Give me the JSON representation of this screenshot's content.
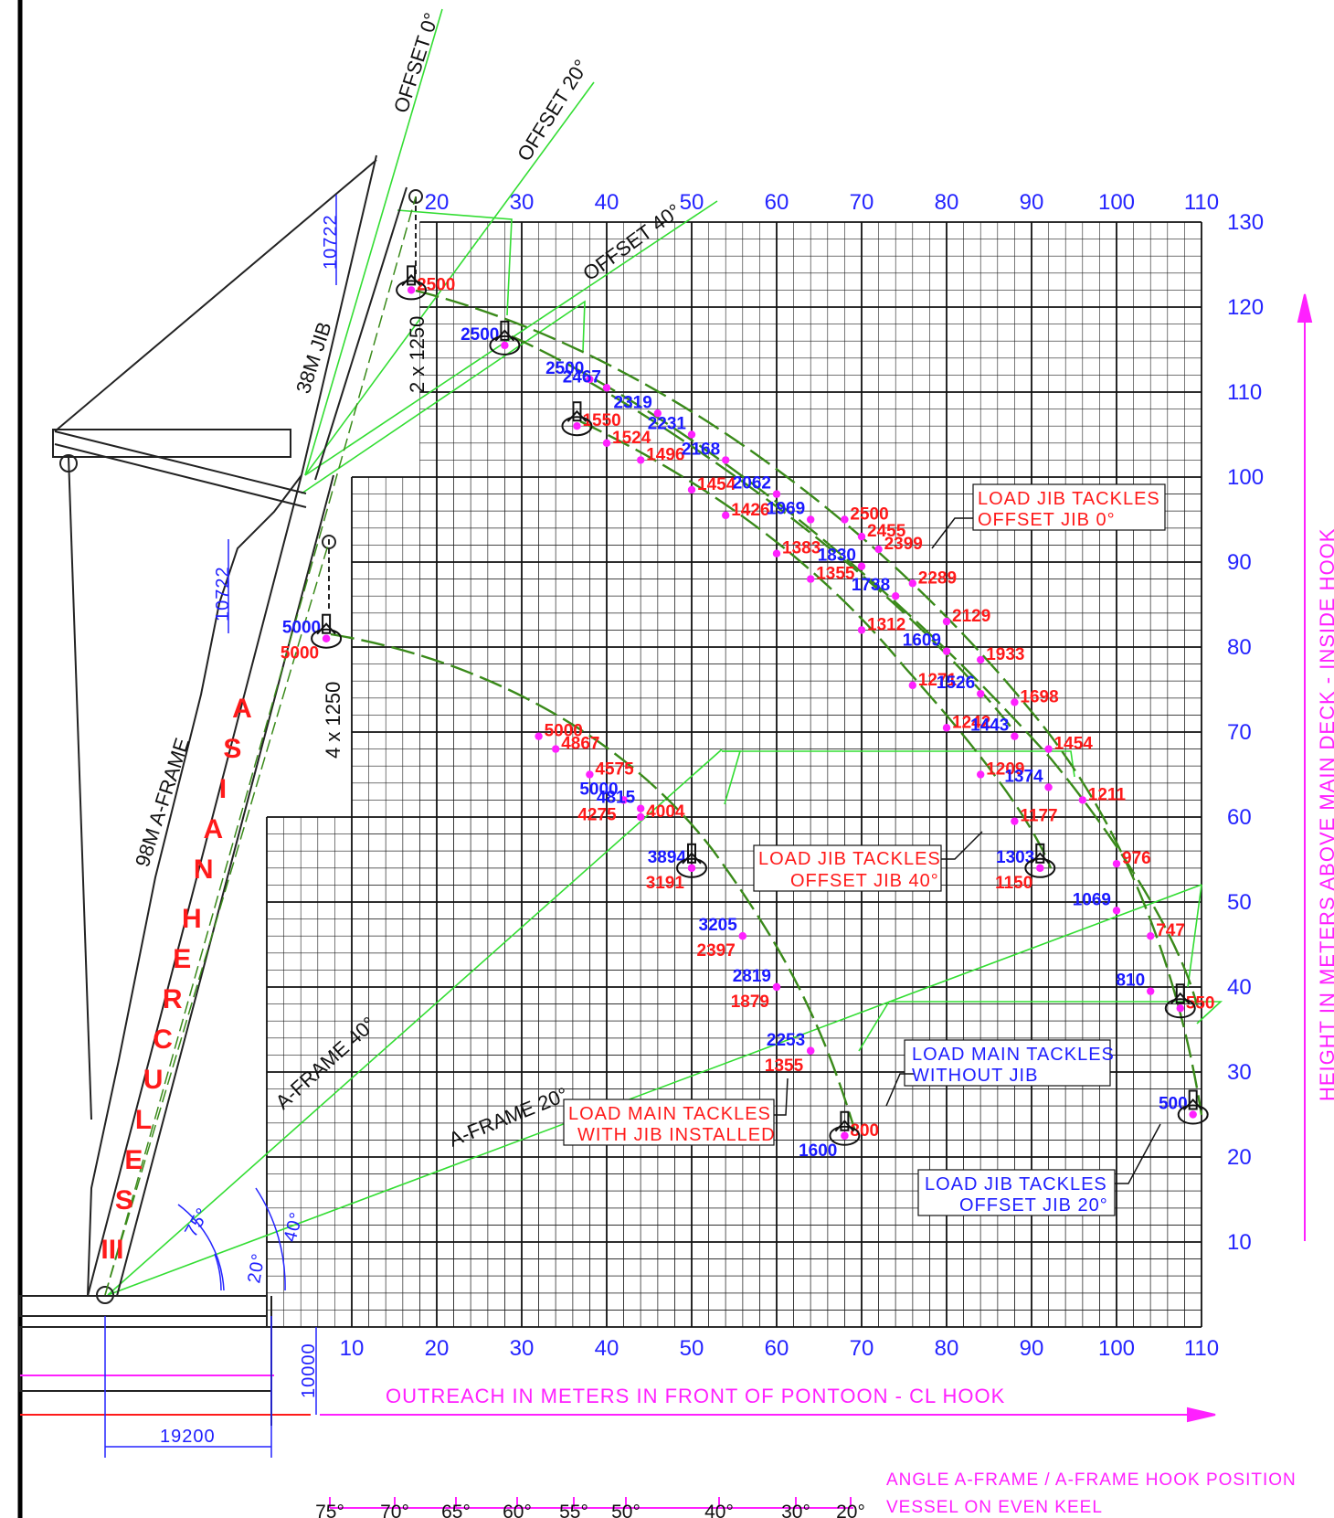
{
  "axes": {
    "x_top_ticks": [
      "20",
      "30",
      "40",
      "50",
      "60",
      "70",
      "80",
      "90",
      "100",
      "110"
    ],
    "x_bottom_ticks": [
      "10",
      "20",
      "30",
      "40",
      "50",
      "60",
      "70",
      "80",
      "90",
      "100",
      "110"
    ],
    "y_ticks": [
      "130",
      "120",
      "110",
      "100",
      "90",
      "80",
      "70",
      "60",
      "50",
      "40",
      "30",
      "20",
      "10"
    ],
    "x_title": "OUTREACH IN METERS IN FRONT OF PONTOON - CL HOOK",
    "y_title": "HEIGHT IN METERS ABOVE MAIN DECK - INSIDE HOOK"
  },
  "angle_scale": {
    "ticks": [
      "75°",
      "70°",
      "65°",
      "60°",
      "55°",
      "50°",
      "40°",
      "30°",
      "20°"
    ],
    "caption1": "ANGLE A-FRAME / A-FRAME HOOK POSITION",
    "caption2": "VESSEL ON EVEN KEEL"
  },
  "crane": {
    "name": "ASIAN HERCULES III",
    "name_letters": [
      "A",
      "S",
      "I",
      "A",
      "N",
      "H",
      "E",
      "R",
      "C",
      "U",
      "L",
      "E",
      "S",
      "III"
    ],
    "a_frame_label": "98M A-FRAME",
    "jib_label": "38M JIB",
    "dim_jib_top": "10722",
    "dim_jib_mid": "10722",
    "tackle_jib": "2 x 1250",
    "tackle_main": "4 x 1250",
    "dim_deck": "10000",
    "dim_base": "19200",
    "angle_75": "75°",
    "angle_20": "20°",
    "angle_40": "40°"
  },
  "line_labels": {
    "offset0": "OFFSET 0°",
    "offset20": "OFFSET 20°",
    "offset40": "OFFSET 40°",
    "aframe40": "A-FRAME 40°",
    "aframe20": "A-FRAME 20°"
  },
  "notes": {
    "jib0_l1": "LOAD JIB TACKLES",
    "jib0_l2": "OFFSET JIB 0°",
    "jib40_l1": "LOAD JIB TACKLES",
    "jib40_l2": "OFFSET JIB 40°",
    "main_wo_l1": "LOAD MAIN TACKLES",
    "main_wo_l2": "WITHOUT JIB",
    "main_w_l1": "LOAD MAIN TACKLES",
    "main_w_l2": "WITH JIB INSTALLED",
    "jib20_l1": "LOAD JIB TACKLES",
    "jib20_l2": "OFFSET JIB 20°"
  },
  "chart_data": {
    "type": "scatter",
    "x_range": [
      0,
      110
    ],
    "y_range": [
      0,
      130
    ],
    "load_points": [
      {
        "label": "2500",
        "x": 17.0,
        "y": 122.0,
        "color": "red"
      },
      {
        "label": "2500",
        "x": 28.0,
        "y": 115.5,
        "color": "blue"
      },
      {
        "label": "2500",
        "x": 38.0,
        "y": 111.5,
        "color": "blue"
      },
      {
        "label": "2467",
        "x": 40.0,
        "y": 110.5,
        "color": "blue"
      },
      {
        "label": "1550",
        "x": 36.5,
        "y": 106.0,
        "color": "red"
      },
      {
        "label": "2319",
        "x": 46.0,
        "y": 107.5,
        "color": "blue"
      },
      {
        "label": "1524",
        "x": 40.0,
        "y": 104.0,
        "color": "red"
      },
      {
        "label": "2231",
        "x": 50.0,
        "y": 105.0,
        "color": "blue"
      },
      {
        "label": "1496",
        "x": 44.0,
        "y": 102.0,
        "color": "red"
      },
      {
        "label": "2168",
        "x": 54.0,
        "y": 102.0,
        "color": "blue"
      },
      {
        "label": "1454",
        "x": 50.0,
        "y": 98.5,
        "color": "red"
      },
      {
        "label": "2062",
        "x": 60.0,
        "y": 98.0,
        "color": "blue"
      },
      {
        "label": "1426",
        "x": 54.0,
        "y": 95.5,
        "color": "red"
      },
      {
        "label": "1969",
        "x": 64.0,
        "y": 95.0,
        "color": "blue"
      },
      {
        "label": "2500",
        "x": 68.0,
        "y": 95.0,
        "color": "red"
      },
      {
        "label": "2455",
        "x": 70.0,
        "y": 93.0,
        "color": "red"
      },
      {
        "label": "1383",
        "x": 60.0,
        "y": 91.0,
        "color": "red"
      },
      {
        "label": "2399",
        "x": 72.0,
        "y": 91.5,
        "color": "red"
      },
      {
        "label": "1830",
        "x": 70.0,
        "y": 89.5,
        "color": "blue"
      },
      {
        "label": "2289",
        "x": 76.0,
        "y": 87.5,
        "color": "red"
      },
      {
        "label": "1355",
        "x": 64.0,
        "y": 88.0,
        "color": "red"
      },
      {
        "label": "1738",
        "x": 74.0,
        "y": 86.0,
        "color": "blue"
      },
      {
        "label": "2129",
        "x": 80.0,
        "y": 83.0,
        "color": "red"
      },
      {
        "label": "1312",
        "x": 70.0,
        "y": 82.0,
        "color": "red"
      },
      {
        "label": "1609",
        "x": 80.0,
        "y": 79.5,
        "color": "blue"
      },
      {
        "label": "1933",
        "x": 84.0,
        "y": 78.5,
        "color": "red"
      },
      {
        "label": "1271",
        "x": 76.0,
        "y": 75.5,
        "color": "red"
      },
      {
        "label": "1698",
        "x": 88.0,
        "y": 73.5,
        "color": "red"
      },
      {
        "label": "1526",
        "x": 84.0,
        "y": 74.5,
        "color": "blue"
      },
      {
        "label": "1242",
        "x": 80.0,
        "y": 70.5,
        "color": "red"
      },
      {
        "label": "1443",
        "x": 88.0,
        "y": 69.5,
        "color": "blue"
      },
      {
        "label": "1454",
        "x": 92.0,
        "y": 68.0,
        "color": "red"
      },
      {
        "label": "1209",
        "x": 84.0,
        "y": 65.0,
        "color": "red"
      },
      {
        "label": "1374",
        "x": 92.0,
        "y": 63.5,
        "color": "blue"
      },
      {
        "label": "1211",
        "x": 96.0,
        "y": 62.0,
        "color": "red"
      },
      {
        "label": "1177",
        "x": 88.0,
        "y": 59.5,
        "color": "red"
      },
      {
        "label": "1303",
        "x": 91.0,
        "y": 54.0,
        "color": "blue"
      },
      {
        "label": "976",
        "x": 100.0,
        "y": 54.5,
        "color": "red"
      },
      {
        "label": "1150",
        "x": 91.0,
        "y": 54.0,
        "color": "red"
      },
      {
        "label": "1069",
        "x": 100.0,
        "y": 49.0,
        "color": "blue"
      },
      {
        "label": "747",
        "x": 104.0,
        "y": 46.0,
        "color": "red"
      },
      {
        "label": "810",
        "x": 104.0,
        "y": 39.5,
        "color": "blue"
      },
      {
        "label": "550",
        "x": 107.5,
        "y": 37.5,
        "color": "red"
      },
      {
        "label": "500",
        "x": 109.0,
        "y": 25.0,
        "color": "blue"
      },
      {
        "label": "5000",
        "x": 7.0,
        "y": 81.0,
        "color": "blue"
      },
      {
        "label": "5000",
        "x": 7.0,
        "y": 81.0,
        "color": "red"
      },
      {
        "label": "5000",
        "x": 32.0,
        "y": 69.5,
        "color": "red"
      },
      {
        "label": "4867",
        "x": 34.0,
        "y": 68.0,
        "color": "red"
      },
      {
        "label": "4575",
        "x": 38.0,
        "y": 65.0,
        "color": "red"
      },
      {
        "label": "5000",
        "x": 42.0,
        "y": 62.0,
        "color": "blue"
      },
      {
        "label": "4275",
        "x": 42.0,
        "y": 62.0,
        "color": "red"
      },
      {
        "label": "4815",
        "x": 44.0,
        "y": 61.0,
        "color": "blue"
      },
      {
        "label": "4004",
        "x": 44.0,
        "y": 60.0,
        "color": "red"
      },
      {
        "label": "3894",
        "x": 50.0,
        "y": 54.0,
        "color": "blue"
      },
      {
        "label": "3191",
        "x": 50.0,
        "y": 54.0,
        "color": "red"
      },
      {
        "label": "3205",
        "x": 56.0,
        "y": 46.0,
        "color": "blue"
      },
      {
        "label": "2397",
        "x": 56.0,
        "y": 46.0,
        "color": "red"
      },
      {
        "label": "2819",
        "x": 60.0,
        "y": 40.0,
        "color": "blue"
      },
      {
        "label": "1879",
        "x": 60.0,
        "y": 40.0,
        "color": "red"
      },
      {
        "label": "2253",
        "x": 64.0,
        "y": 32.5,
        "color": "blue"
      },
      {
        "label": "1355",
        "x": 64.0,
        "y": 32.5,
        "color": "red"
      },
      {
        "label": "800",
        "x": 68.0,
        "y": 22.5,
        "color": "red"
      },
      {
        "label": "1600",
        "x": 68.0,
        "y": 22.5,
        "color": "blue"
      }
    ]
  },
  "colors": {
    "red": "#ff1a1a",
    "blue": "#1a1aff",
    "green": "#33dd33",
    "olive": "#3a8a1a",
    "magenta": "#ff20ff",
    "axis_blue": "#2424ff"
  }
}
